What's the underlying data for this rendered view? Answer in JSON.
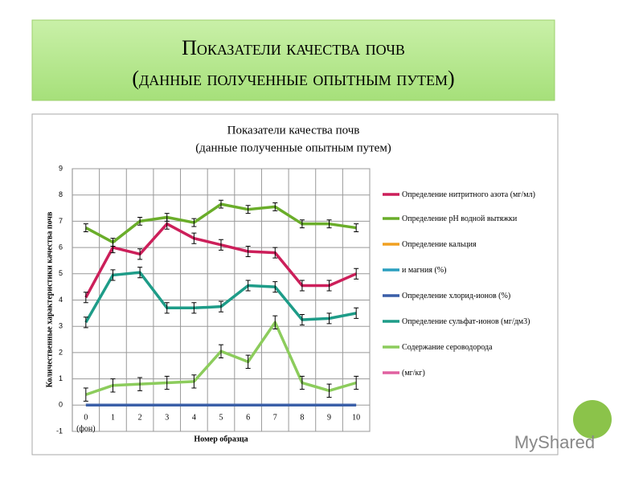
{
  "slide": {
    "title_lines": [
      "Показатели качества почв",
      "(данные полученные опытным путем)"
    ],
    "watermark": "MyShared"
  },
  "chart_data": {
    "type": "line",
    "title_lines": [
      "Показатели качества почв",
      "(данные полученные опытным путем)"
    ],
    "y_label": "Количественные характеристики качества почв",
    "x_label": "Номер образца",
    "annotation": "(фон)",
    "categories": [
      "0",
      "1",
      "2",
      "3",
      "4",
      "5",
      "6",
      "7",
      "8",
      "9",
      "10"
    ],
    "ylim": [
      -1,
      9
    ],
    "yticks": [
      -1,
      0,
      1,
      2,
      3,
      4,
      5,
      6,
      7,
      8,
      9
    ],
    "grid": true,
    "series": [
      {
        "name": "Определение нитритного азота (мг/мл)",
        "color": "#cc1f5a",
        "error": 0.2,
        "values": [
          4.1,
          6.0,
          5.75,
          6.9,
          6.35,
          6.1,
          5.85,
          5.8,
          4.55,
          4.55,
          5.0
        ]
      },
      {
        "name": "Определение рН водной вытяжки",
        "color": "#6aad2a",
        "error": 0.15,
        "values": [
          6.75,
          6.2,
          7.0,
          7.15,
          6.95,
          7.65,
          7.45,
          7.55,
          6.9,
          6.9,
          6.75
        ]
      },
      {
        "name": "Определение кальция",
        "color": "#f0a020",
        "values": [
          null,
          null,
          null,
          null,
          null,
          null,
          null,
          null,
          null,
          null,
          null
        ]
      },
      {
        "name": "и магния (%)",
        "color": "#2a9fbf",
        "values": [
          null,
          null,
          null,
          null,
          null,
          null,
          null,
          null,
          null,
          null,
          null
        ]
      },
      {
        "name": "Определение хлорид-ионов (%)",
        "color": "#3a5fa8",
        "values": [
          0,
          0,
          0,
          0,
          0,
          0,
          0,
          0,
          0,
          0,
          0
        ]
      },
      {
        "name": "Определение сульфат-ионов (мг/дм3)",
        "color": "#1e9c88",
        "error": 0.2,
        "values": [
          3.15,
          4.95,
          5.05,
          3.7,
          3.7,
          3.75,
          4.55,
          4.5,
          3.25,
          3.3,
          3.5
        ]
      },
      {
        "name": "Содержание сероводорода",
        "color": "#8ccc5c",
        "error": 0.25,
        "values": [
          0.4,
          0.75,
          0.8,
          0.85,
          0.9,
          2.05,
          1.65,
          3.15,
          0.85,
          0.55,
          0.85
        ]
      },
      {
        "name": "(мг/кг)",
        "color": "#e060a0",
        "values": [
          null,
          null,
          null,
          null,
          null,
          null,
          null,
          null,
          null,
          null,
          null
        ]
      }
    ]
  }
}
